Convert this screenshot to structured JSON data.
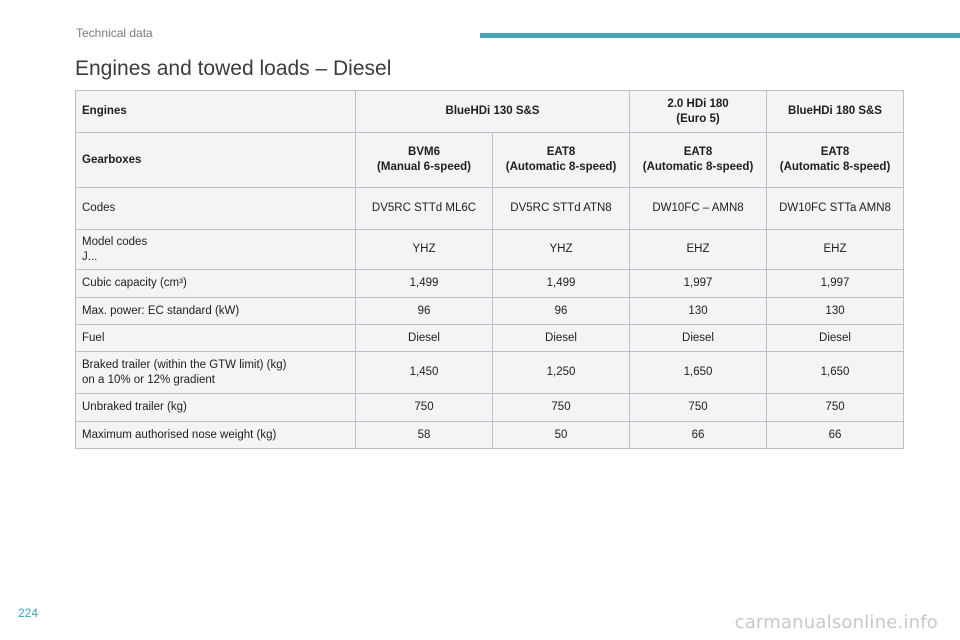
{
  "header": {
    "section": "Technical data",
    "accent_color": "#4aa3b8"
  },
  "title": "Engines and towed loads – Diesel",
  "table": {
    "header_rows": [
      {
        "label": "Engines",
        "cells": [
          "BlueHDi 130 S&S",
          "2.0 HDi 180\n(Euro 5)",
          "BlueHDi 180 S&S"
        ]
      },
      {
        "label": "Gearboxes",
        "cells": [
          "BVM6\n(Manual 6-speed)",
          "EAT8\n(Automatic 8-speed)",
          "EAT8\n(Automatic 8-speed)",
          "EAT8\n(Automatic 8-speed)"
        ]
      }
    ],
    "rows": [
      {
        "label": "Codes",
        "cells": [
          "DV5RC STTd ML6C",
          "DV5RC STTd ATN8",
          "DW10FC – AMN8",
          "DW10FC STTa AMN8"
        ]
      },
      {
        "label": "Model codes\nJ...",
        "cells": [
          "YHZ",
          "YHZ",
          "EHZ",
          "EHZ"
        ]
      },
      {
        "label": "Cubic capacity (cm³)",
        "cells": [
          "1,499",
          "1,499",
          "1,997",
          "1,997"
        ]
      },
      {
        "label": "Max. power: EC standard (kW)",
        "cells": [
          "96",
          "96",
          "130",
          "130"
        ]
      },
      {
        "label": "Fuel",
        "cells": [
          "Diesel",
          "Diesel",
          "Diesel",
          "Diesel"
        ]
      },
      {
        "label": "Braked trailer (within the GTW limit) (kg)\non a 10% or 12% gradient",
        "cells": [
          "1,450",
          "1,250",
          "1,650",
          "1,650"
        ]
      },
      {
        "label": "Unbraked trailer (kg)",
        "cells": [
          "750",
          "750",
          "750",
          "750"
        ]
      },
      {
        "label": "Maximum authorised nose weight (kg)",
        "cells": [
          "58",
          "50",
          "66",
          "66"
        ]
      }
    ]
  },
  "footer": {
    "page_number": "224",
    "watermark": "carmanualsonline.info"
  }
}
